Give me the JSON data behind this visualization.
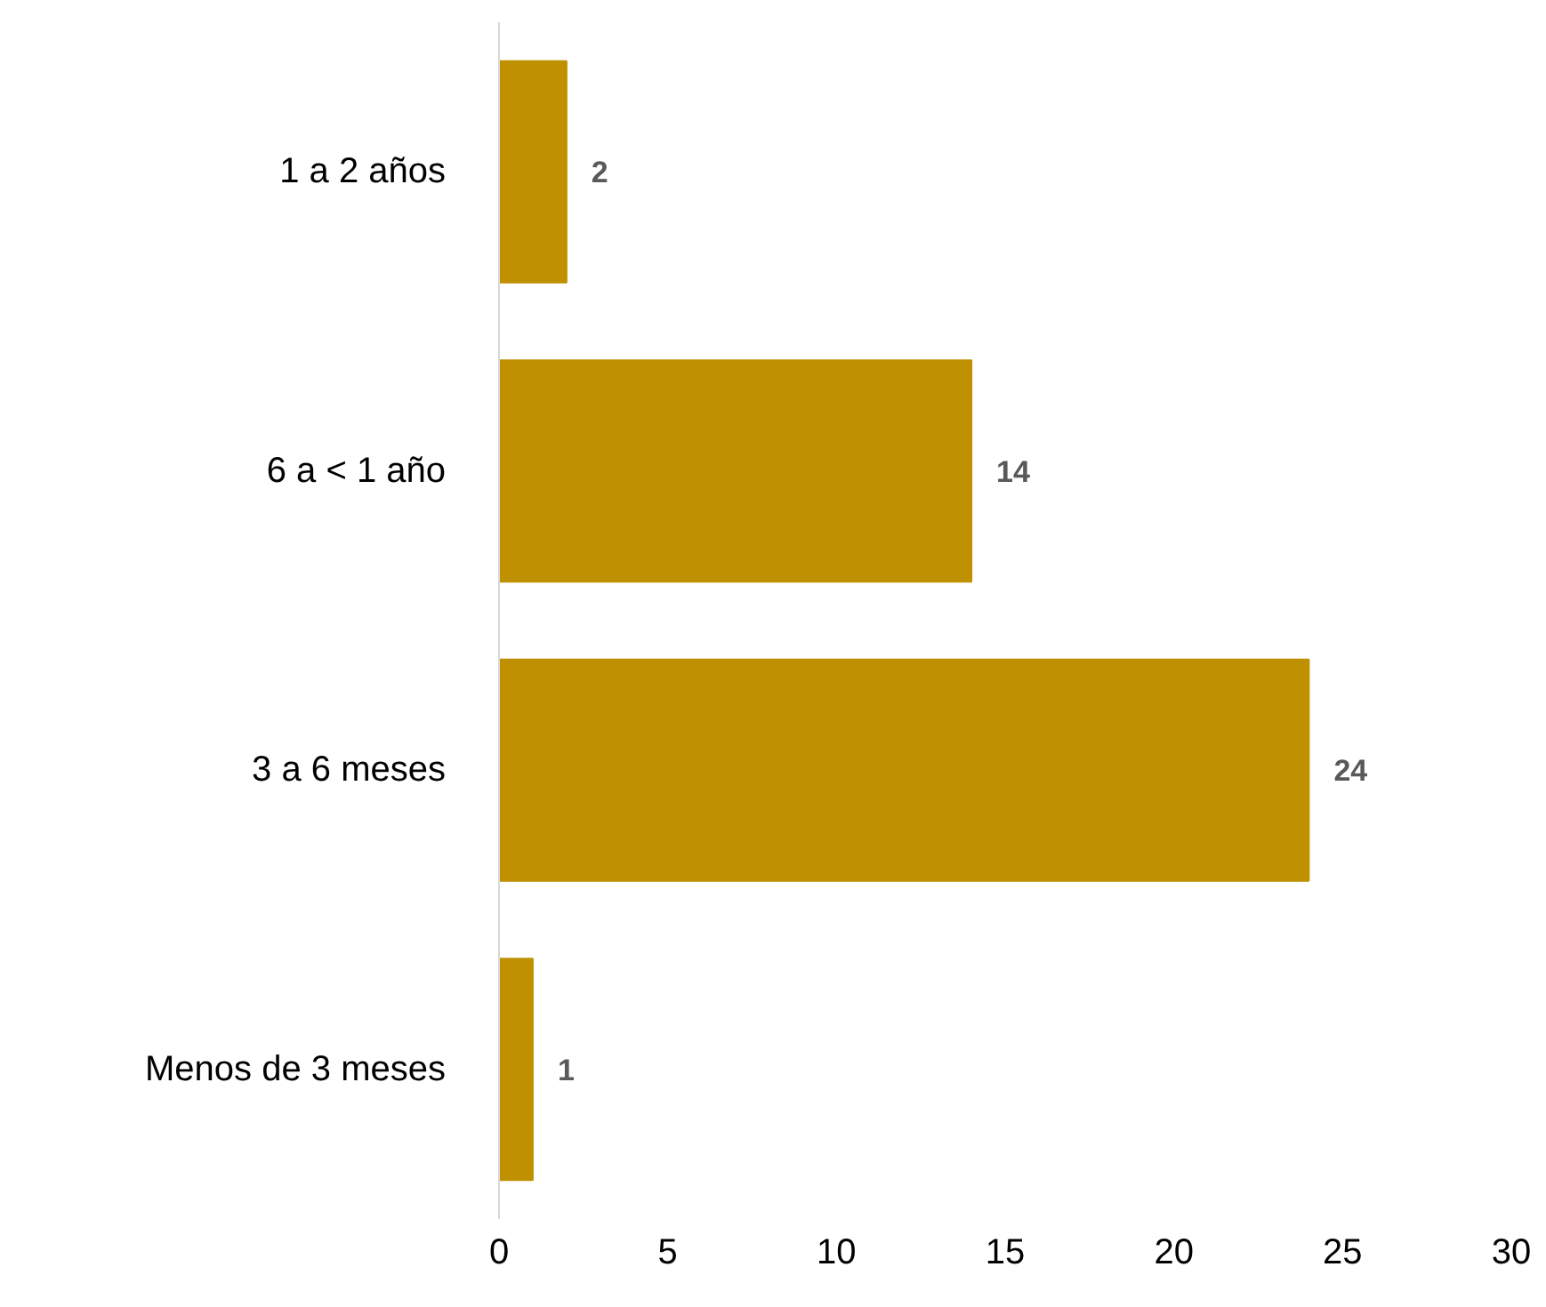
{
  "chart_data": {
    "type": "bar",
    "orientation": "horizontal",
    "categories": [
      "1 a 2 años",
      "6 a < 1 año",
      "3 a 6 meses",
      "Menos de 3 meses"
    ],
    "values": [
      2,
      14,
      24,
      1
    ],
    "color": "#bf9000",
    "xlim": [
      0,
      30
    ],
    "xticks": [
      0,
      5,
      10,
      15,
      20,
      25,
      30
    ],
    "grid": false,
    "data_labels": true
  }
}
